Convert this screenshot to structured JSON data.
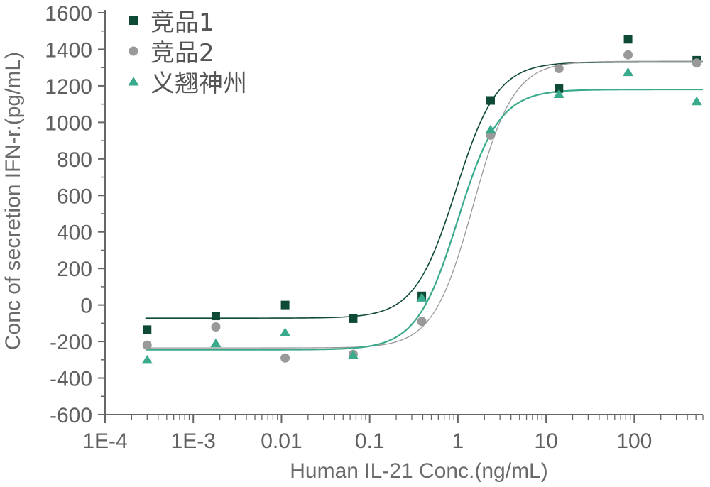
{
  "chart_data": {
    "type": "scatter",
    "xlabel": "Human IL-21 Conc.(ng/mL)",
    "ylabel": "Conc of secretion IFN-r.(pg/mL)",
    "xscale": "log",
    "xlim": [
      0.0001,
      600
    ],
    "ylim": [
      -600,
      1600
    ],
    "x_tick_values": [
      0.0001,
      0.001,
      0.01,
      0.1,
      1,
      10,
      100
    ],
    "x_tick_labels": [
      "1E-4",
      "1E-3",
      "0.01",
      "0.1",
      "1",
      "10",
      "100"
    ],
    "y_tick_values": [
      -600,
      -400,
      -200,
      0,
      200,
      400,
      600,
      800,
      1000,
      1200,
      1400,
      1600
    ],
    "y_tick_labels": [
      "-600",
      "-400",
      "-200",
      "0",
      "200",
      "400",
      "600",
      "800",
      "1000",
      "1200",
      "1400",
      "1600"
    ],
    "legend_position": "top-left",
    "grid": false,
    "series": [
      {
        "name": "竞品1",
        "marker": "square",
        "color": "#0f4a36",
        "x": [
          0.0003,
          0.0018,
          0.011,
          0.065,
          0.39,
          2.35,
          14,
          85,
          510
        ],
        "y": [
          -135,
          -60,
          0,
          -75,
          50,
          1120,
          1185,
          1455,
          1340
        ],
        "fit": {
          "bottom": -72,
          "top": 1330,
          "ec50": 0.95,
          "hill": 1.85
        }
      },
      {
        "name": "竞品2",
        "marker": "circle",
        "color": "#999999",
        "x": [
          0.0003,
          0.0018,
          0.011,
          0.065,
          0.39,
          2.35,
          14,
          85,
          510
        ],
        "y": [
          -220,
          -120,
          -290,
          -270,
          -90,
          930,
          1295,
          1370,
          1325
        ],
        "fit": {
          "bottom": -235,
          "top": 1335,
          "ec50": 1.5,
          "hill": 1.9
        }
      },
      {
        "name": "义翘神州",
        "marker": "triangle",
        "color": "#3aaa8c",
        "x": [
          0.0003,
          0.0018,
          0.011,
          0.065,
          0.39,
          2.35,
          14,
          85,
          510
        ],
        "y": [
          -300,
          -210,
          -150,
          -275,
          40,
          960,
          1155,
          1275,
          1115
        ],
        "fit": {
          "bottom": -245,
          "top": 1180,
          "ec50": 1.0,
          "hill": 1.85
        }
      }
    ]
  }
}
